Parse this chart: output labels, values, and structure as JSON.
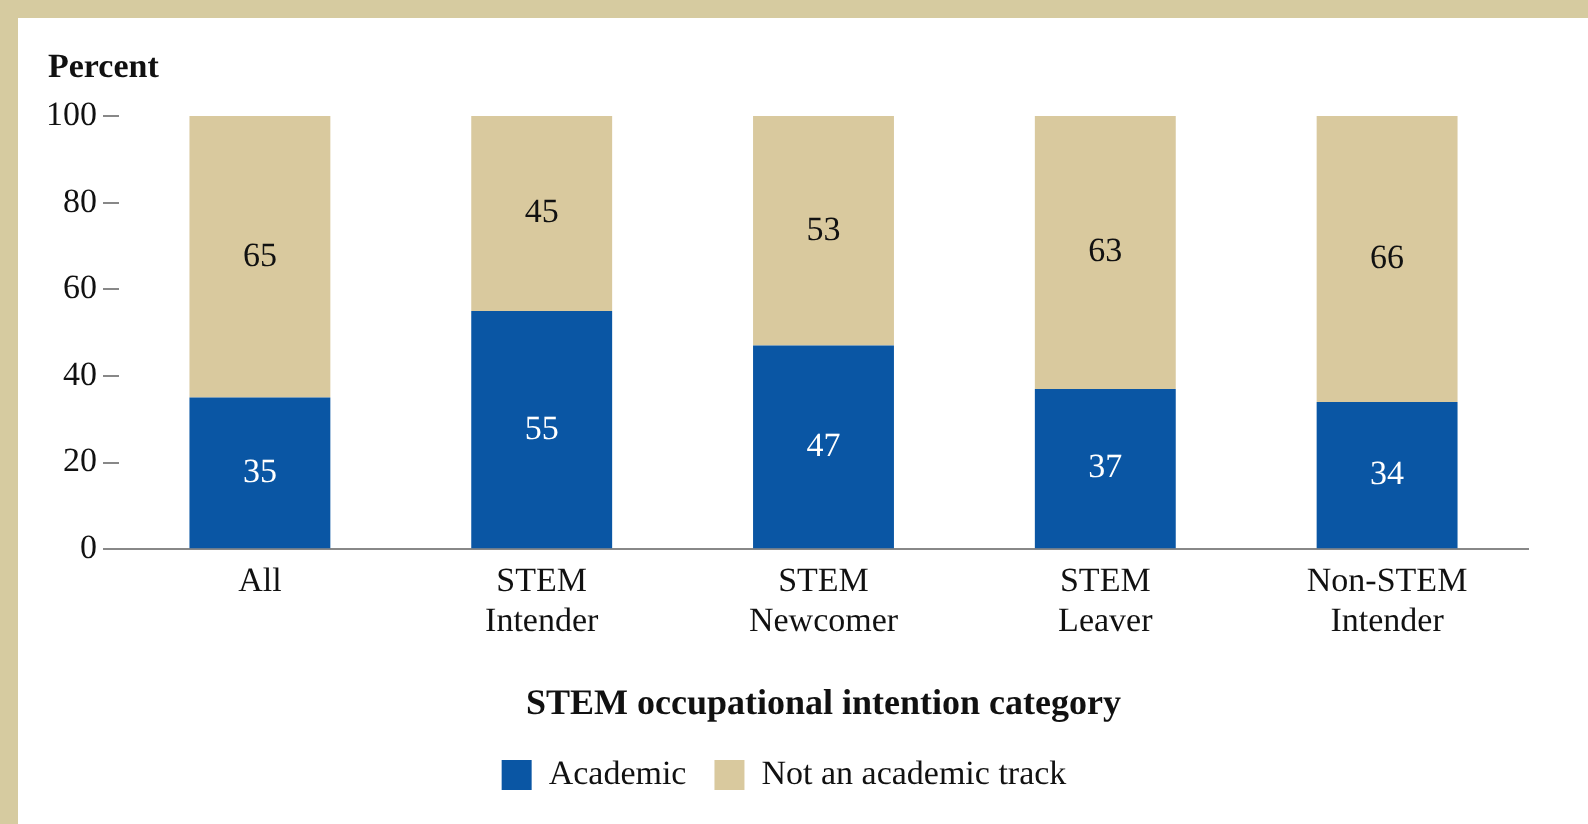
{
  "chart_data": {
    "type": "bar",
    "stacked": true,
    "ylabel": "Percent",
    "xlabel": "STEM occupational intention category",
    "categories": [
      "All",
      "STEM Intender",
      "STEM Newcomer",
      "STEM Leaver",
      "Non-STEM Intender"
    ],
    "series": [
      {
        "name": "Academic",
        "color": "#0a56a4",
        "values": [
          35,
          55,
          47,
          37,
          34
        ]
      },
      {
        "name": "Not an academic track",
        "color": "#d9c99e",
        "values": [
          65,
          45,
          53,
          63,
          66
        ]
      }
    ],
    "ylim": [
      0,
      100
    ],
    "yticks": [
      0,
      20,
      40,
      60,
      80,
      100
    ],
    "grid": false,
    "legend": "bottom",
    "data_labels": true
  }
}
